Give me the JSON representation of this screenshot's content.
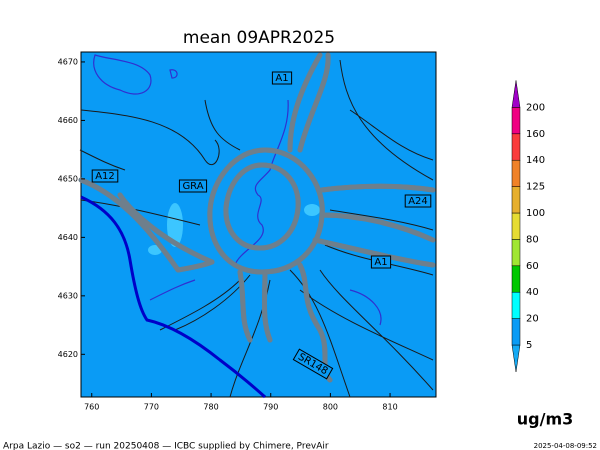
{
  "map": {
    "title": "mean 09APR2025",
    "xlim": [
      758.2,
      817.7
    ],
    "ylim": [
      4612.7,
      4671.7
    ],
    "xticks": [
      760,
      770,
      780,
      790,
      800,
      810
    ],
    "yticks": [
      4620,
      4630,
      4640,
      4650,
      4660,
      4670
    ],
    "background_color": "#0a9bf5",
    "road_labels": [
      "A1",
      "GRA",
      "A12",
      "A24",
      "A1",
      "SR148"
    ],
    "colorbar": {
      "levels": [
        5,
        20,
        40,
        60,
        80,
        100,
        125,
        140,
        160,
        200
      ],
      "colors": [
        "#14aaf5",
        "#0a9bf5",
        "#00ffff",
        "#00c800",
        "#a0e632",
        "#e6dc32",
        "#e6af2d",
        "#f08228",
        "#fa3c3c",
        "#f00082",
        "#a000c8"
      ],
      "unit": "ug/m3"
    },
    "footer": "Arpa Lazio — so2 — run 20250408 — ICBC supplied by Chimere, PrevAir",
    "timestamp": "2025-04-08-09:52"
  }
}
